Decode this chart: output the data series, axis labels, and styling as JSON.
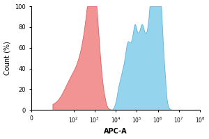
{
  "title": "",
  "xlabel": "APC-A",
  "ylabel": "Count (%)",
  "ylim": [
    0,
    100
  ],
  "yticks": [
    0,
    20,
    40,
    60,
    80,
    100
  ],
  "red_color": "#F07070",
  "red_edge": "#D04040",
  "blue_color": "#70C8E8",
  "blue_edge": "#40A0D0",
  "background": "#FFFFFF",
  "red_alpha": 0.75,
  "blue_alpha": 0.75,
  "figsize": [
    3.0,
    2.0
  ],
  "dpi": 100
}
